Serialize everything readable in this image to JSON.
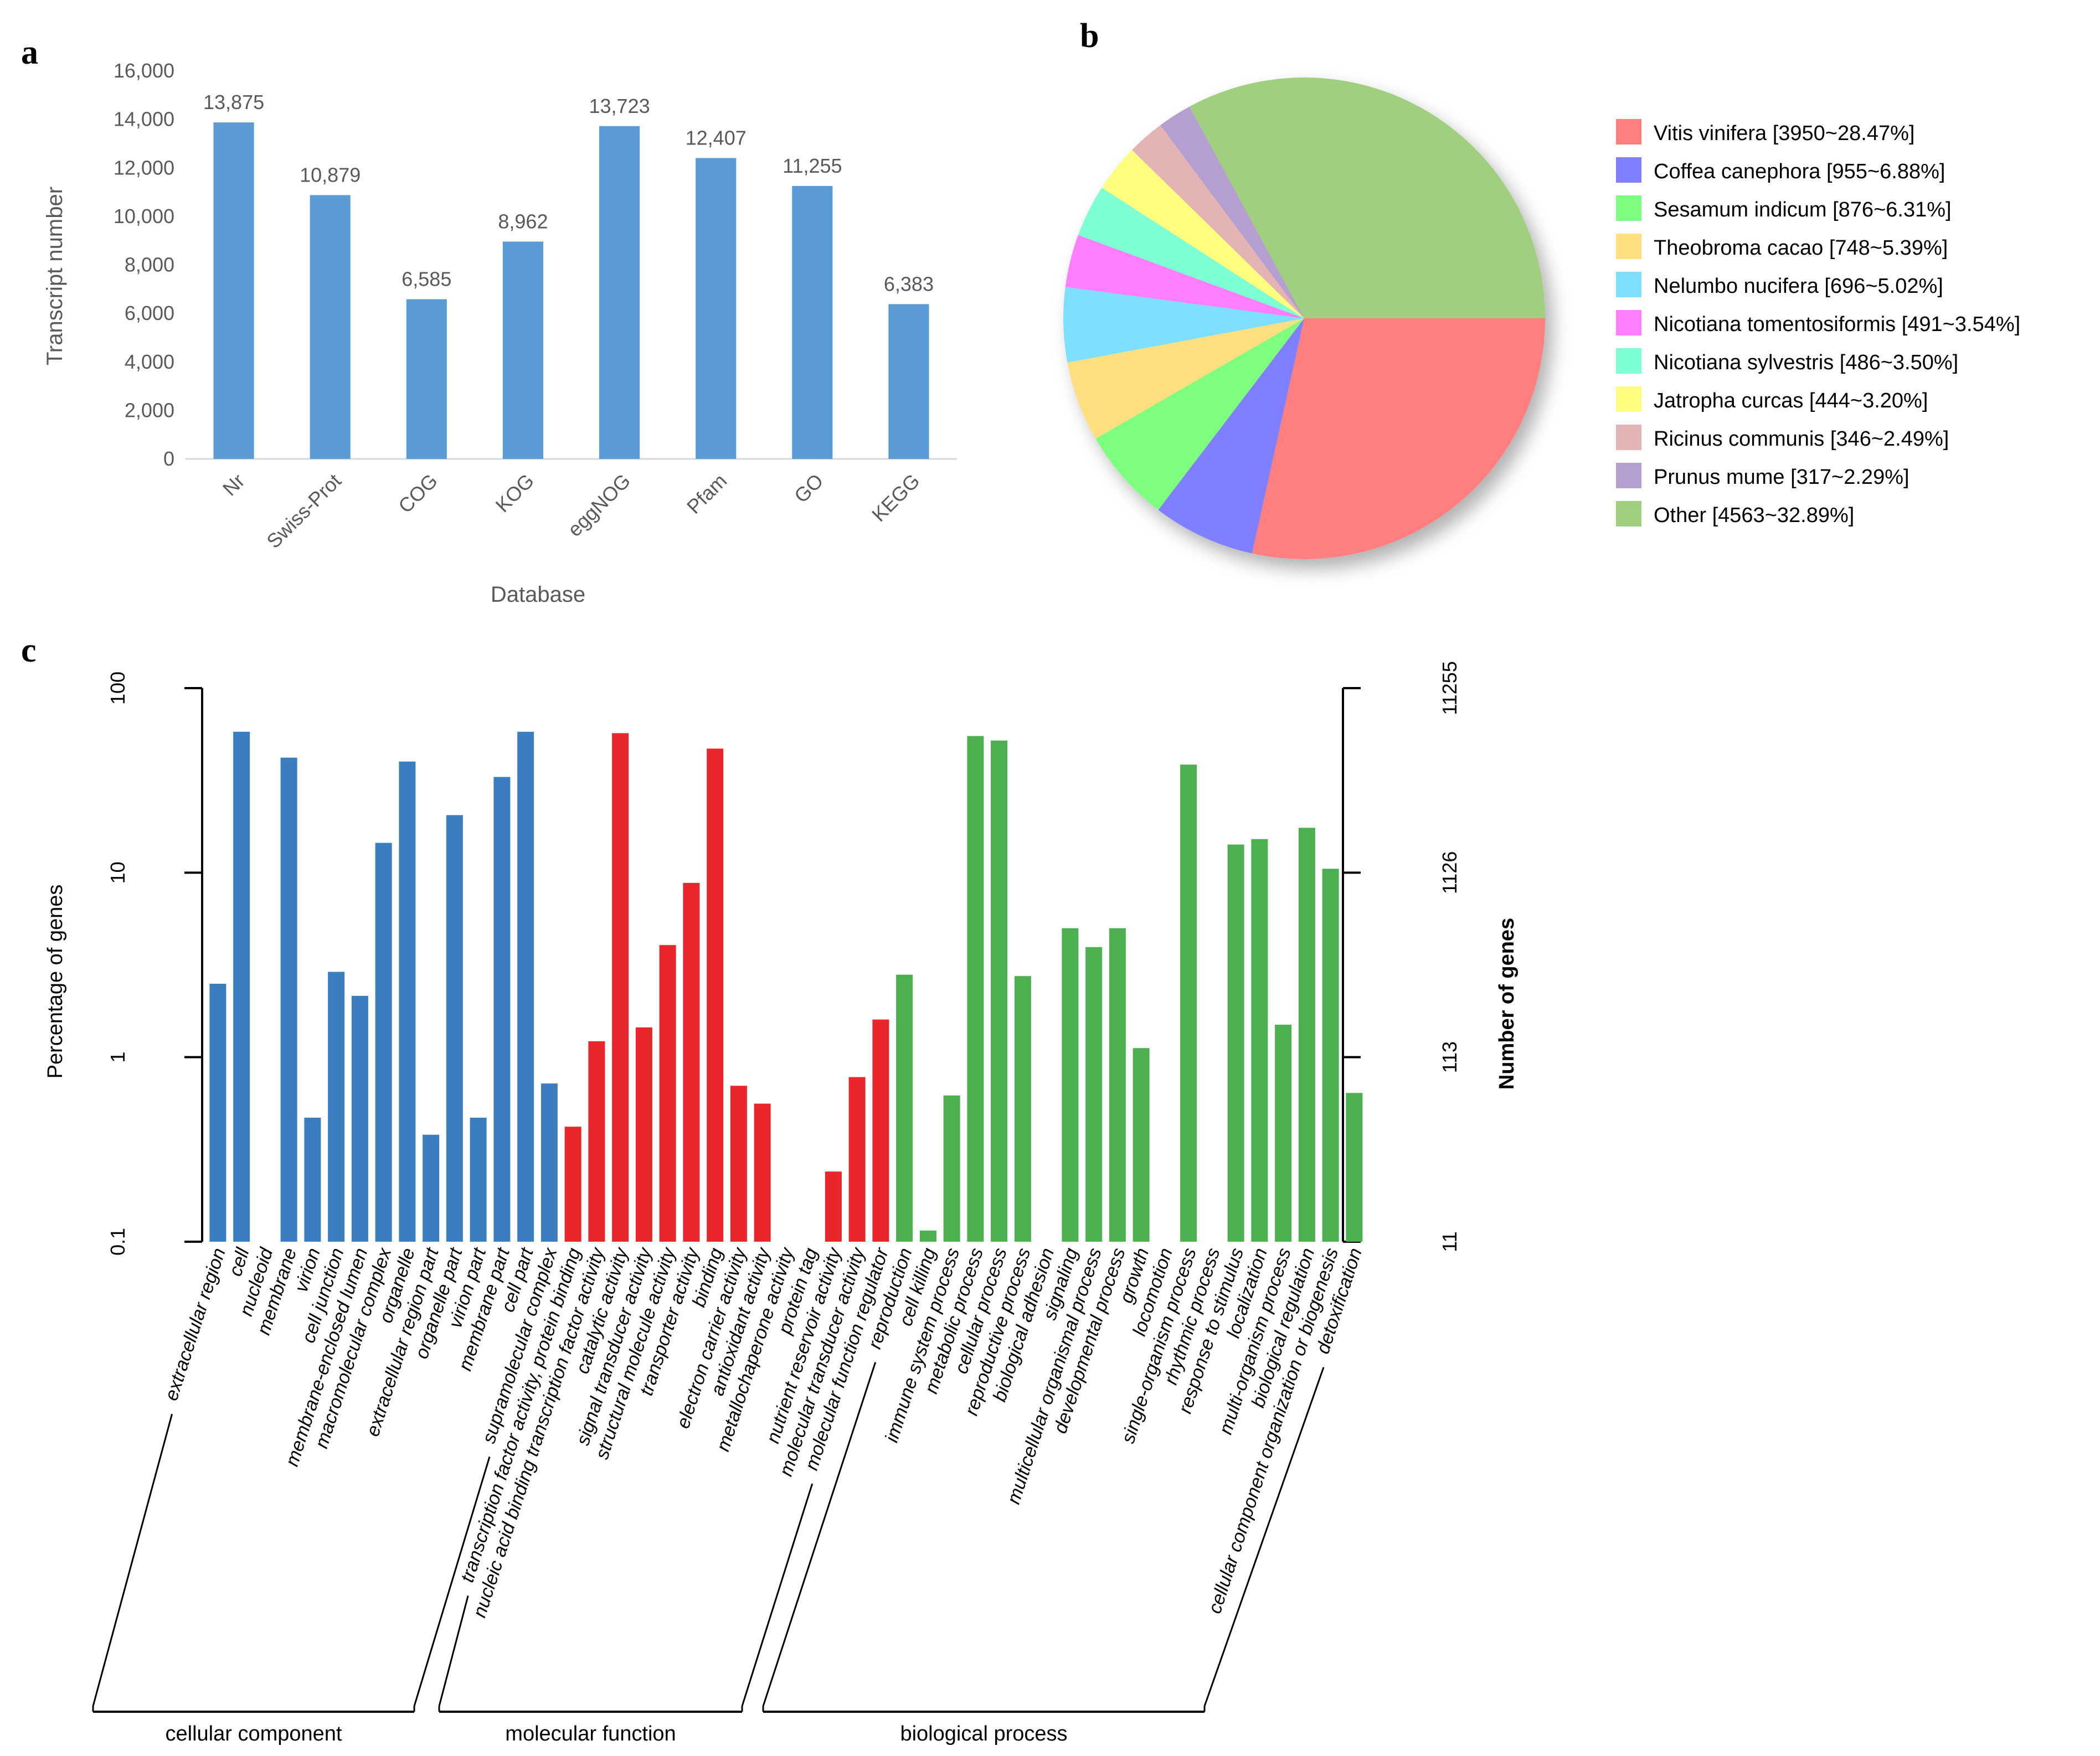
{
  "panels": {
    "a": "a",
    "b": "b",
    "c": "c"
  },
  "chart_data": [
    {
      "type": "bar",
      "categories": [
        "Nr",
        "Swiss-Prot",
        "COG",
        "KOG",
        "eggNOG",
        "Pfam",
        "GO",
        "KEGG"
      ],
      "values": [
        13875,
        10879,
        6585,
        8962,
        13723,
        12407,
        11255,
        6383
      ],
      "value_labels": [
        "13,875",
        "10,879",
        "6,585",
        "8,962",
        "13,723",
        "12,407",
        "11,255",
        "6,383"
      ],
      "xlabel": "Database",
      "ylabel": "Transcript number",
      "ylim": [
        0,
        16000
      ],
      "yticks": [
        0,
        2000,
        4000,
        6000,
        8000,
        10000,
        12000,
        14000,
        16000
      ],
      "ytick_labels": [
        "0",
        "2,000",
        "4,000",
        "6,000",
        "8,000",
        "10,000",
        "12,000",
        "14,000",
        "16,000"
      ],
      "bar_color": "#5b9bd5",
      "grid": false,
      "legend": false
    },
    {
      "type": "pie",
      "legend_position": "right",
      "slices": [
        {
          "label": "Vitis vinifera [3950~28.47%]",
          "value": 28.47,
          "color": "#ff7f7f"
        },
        {
          "label": "Coffea canephora [955~6.88%]",
          "value": 6.88,
          "color": "#7f7fff"
        },
        {
          "label": "Sesamum indicum [876~6.31%]",
          "value": 6.31,
          "color": "#7fff7f"
        },
        {
          "label": "Theobroma cacao [748~5.39%]",
          "value": 5.39,
          "color": "#ffdf7f"
        },
        {
          "label": "Nelumbo nucifera [696~5.02%]",
          "value": 5.02,
          "color": "#7fdfff"
        },
        {
          "label": "Nicotiana tomentosiformis [491~3.54%]",
          "value": 3.54,
          "color": "#ff7fff"
        },
        {
          "label": "Nicotiana sylvestris [486~3.50%]",
          "value": 3.5,
          "color": "#7fffd4"
        },
        {
          "label": "Jatropha curcas [444~3.20%]",
          "value": 3.2,
          "color": "#ffff7f"
        },
        {
          "label": "Ricinus communis [346~2.49%]",
          "value": 2.49,
          "color": "#e4b4b4"
        },
        {
          "label": "Prunus mume [317~2.29%]",
          "value": 2.29,
          "color": "#b49fd0"
        },
        {
          "label": "Other [4563~32.89%]",
          "value": 32.89,
          "color": "#9fcf7f"
        }
      ]
    },
    {
      "type": "bar",
      "scale": "log",
      "ylabel": "Percentage of genes",
      "ylabel_right": "Number of genes",
      "ylim": [
        0.1,
        100
      ],
      "yticks": [
        0.1,
        1,
        10,
        100
      ],
      "ytick_labels": [
        "0.1",
        "1",
        "10",
        "100"
      ],
      "right_tick_labels": [
        "11",
        "113",
        "1126",
        "11255"
      ],
      "groups": [
        {
          "name": "cellular component",
          "color": "#3a7ebf",
          "categories": [
            "extracellular region",
            "cell",
            "nucleoid",
            "membrane",
            "virion",
            "cell junction",
            "membrane-enclosed lumen",
            "macromolecular complex",
            "organelle",
            "extracellular region part",
            "organelle part",
            "virion part",
            "membrane part",
            "cell part",
            "supramolecular complex"
          ],
          "values": [
            2.5,
            58,
            null,
            42,
            0.47,
            2.9,
            2.15,
            14.5,
            40,
            0.38,
            20.5,
            0.47,
            33,
            58,
            0.72
          ]
        },
        {
          "name": "molecular function",
          "color": "#e8262b",
          "categories": [
            "transcription factor activity, protein binding",
            "nucleic acid binding transcription factor activity",
            "catalytic activity",
            "signal transducer activity",
            "structural molecule activity",
            "transporter activity",
            "binding",
            "electron carrier activity",
            "antioxidant activity",
            "metallochaperone activity",
            "protein tag",
            "nutrient reservoir activity",
            "molecular transducer activity",
            "molecular function regulator"
          ],
          "values": [
            0.42,
            1.22,
            57,
            1.45,
            4.05,
            8.8,
            47,
            0.7,
            0.56,
            null,
            null,
            0.24,
            0.78,
            1.6
          ]
        },
        {
          "name": "biological process",
          "color": "#4caf50",
          "categories": [
            "reproduction",
            "cell killing",
            "immune system process",
            "metabolic process",
            "cellular process",
            "reproductive process",
            "biological adhesion",
            "signaling",
            "multicellular organismal process",
            "developmental process",
            "growth",
            "locomotion",
            "single-organism process",
            "rhythmic process",
            "response to stimulus",
            "localization",
            "multi-organism process",
            "biological regulation",
            "cellular component organization or biogenesis",
            "detoxification"
          ],
          "values": [
            2.8,
            0.115,
            0.62,
            55,
            52,
            2.75,
            null,
            5,
            3.95,
            5,
            1.12,
            null,
            38.5,
            null,
            14.2,
            15.2,
            1.5,
            17.5,
            10.5,
            0.64
          ]
        }
      ]
    }
  ]
}
